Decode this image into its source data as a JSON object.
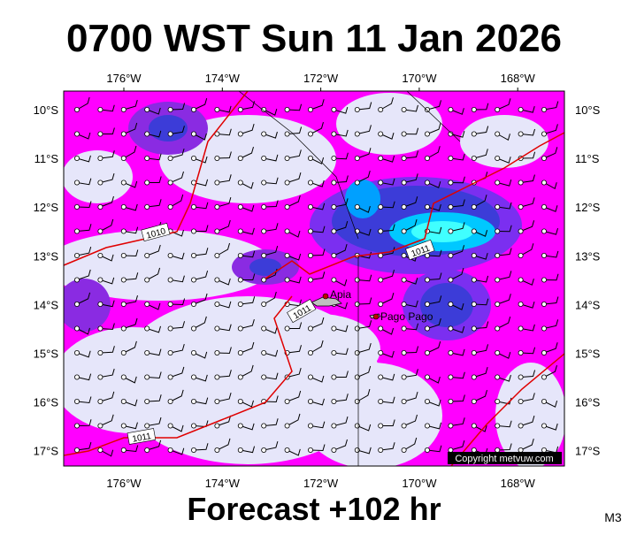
{
  "title": "0700 WST Sun 11 Jan 2026",
  "footer": "Forecast +102 hr",
  "model": "M3",
  "copyright": "Copyright metvuw.com",
  "lon_labels": [
    "176°W",
    "174°W",
    "172°W",
    "170°W",
    "168°W"
  ],
  "lat_labels": [
    "10°S",
    "11°S",
    "12°S",
    "13°S",
    "14°S",
    "15°S",
    "16°S",
    "17°S"
  ],
  "places": [
    "Apia",
    "Pago Pago"
  ],
  "isobar_labels": [
    "1010",
    "1011",
    "1011",
    "1011"
  ]
}
